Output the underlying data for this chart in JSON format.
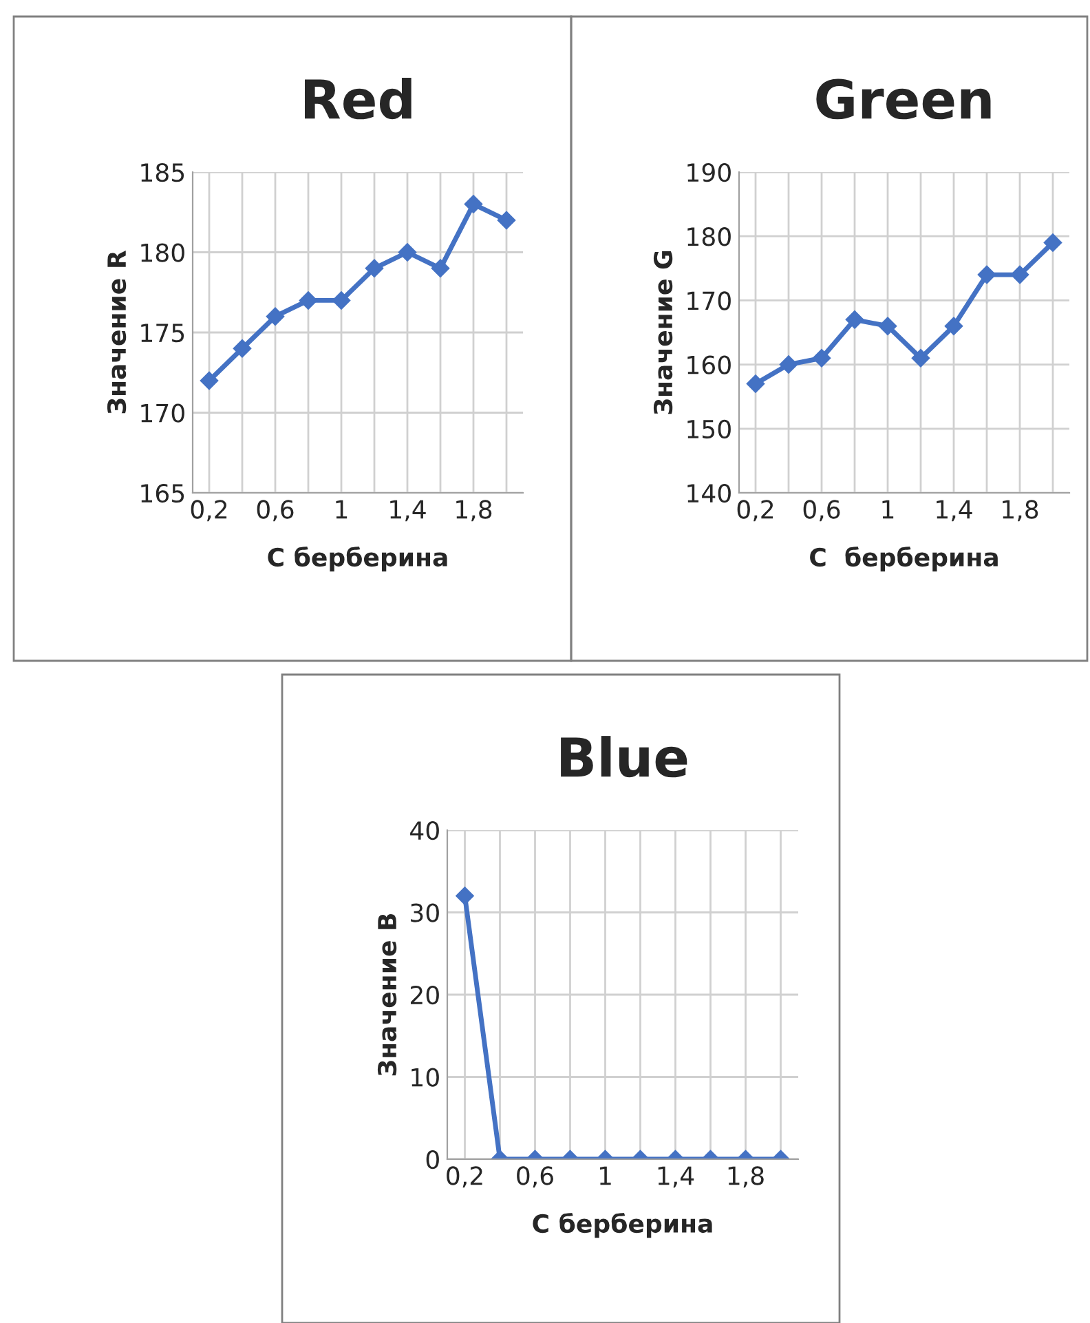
{
  "chart_data": [
    {
      "type": "line",
      "title": "Red",
      "xlabel": "С берберина",
      "ylabel": "Значение R",
      "categories": [
        "0,2",
        null,
        "0,6",
        null,
        "1",
        null,
        "1,4",
        null,
        "1,8",
        null
      ],
      "series": [
        {
          "color": "#4472c4",
          "values": [
            172,
            174,
            176,
            177,
            177,
            179,
            180,
            179,
            183,
            182
          ]
        }
      ],
      "ylim": [
        165,
        185
      ],
      "yticks": [
        165,
        170,
        175,
        180,
        185
      ],
      "grid": true,
      "marker": "diamond",
      "line_style": "solid"
    },
    {
      "type": "line",
      "title": "Green",
      "xlabel": "С  берберина",
      "ylabel": "Значение G",
      "categories": [
        "0,2",
        null,
        "0,6",
        null,
        "1",
        null,
        "1,4",
        null,
        "1,8",
        null
      ],
      "series": [
        {
          "color": "#4472c4",
          "values": [
            157,
            160,
            161,
            167,
            166,
            161,
            166,
            174,
            174,
            179
          ]
        }
      ],
      "ylim": [
        140,
        190
      ],
      "yticks": [
        140,
        150,
        160,
        170,
        180,
        190
      ],
      "grid": true,
      "marker": "diamond",
      "line_style": "solid"
    },
    {
      "type": "line",
      "title": "Blue",
      "xlabel": "С берберина",
      "ylabel": "Значение B",
      "categories": [
        "0,2",
        null,
        "0,6",
        null,
        "1",
        null,
        "1,4",
        null,
        "1,8",
        null
      ],
      "series": [
        {
          "color": "#4472c4",
          "values": [
            32,
            0,
            0,
            0,
            0,
            0,
            0,
            0,
            0,
            0
          ]
        }
      ],
      "ylim": [
        0,
        40
      ],
      "yticks": [
        0,
        10,
        20,
        30,
        40
      ],
      "grid": true,
      "marker": "diamond",
      "line_style": "solid"
    }
  ]
}
